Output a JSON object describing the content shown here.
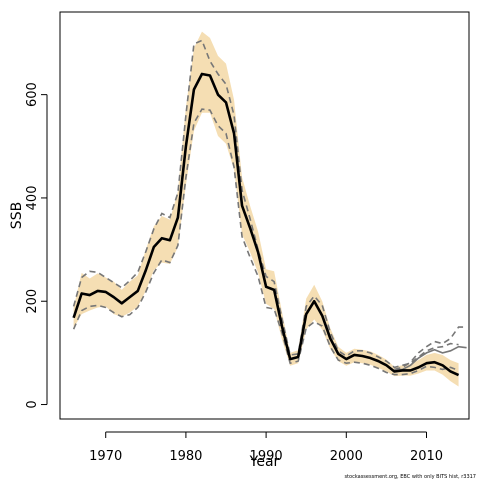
{
  "chart_data": {
    "type": "line",
    "xlabel": "Year",
    "ylabel": "SSB",
    "xlim": [
      1964.3,
      2015.3
    ],
    "ylim": [
      -28,
      760
    ],
    "x_ticks": [
      1970,
      1980,
      1990,
      2000,
      2010
    ],
    "y_ticks": [
      0,
      200,
      400,
      600
    ],
    "years": [
      1966,
      1967,
      1968,
      1969,
      1970,
      1971,
      1972,
      1973,
      1974,
      1975,
      1976,
      1977,
      1978,
      1979,
      1980,
      1981,
      1982,
      1983,
      1984,
      1985,
      1986,
      1987,
      1988,
      1989,
      1990,
      1991,
      1992,
      1993,
      1994,
      1995,
      1996,
      1997,
      1998,
      1999,
      2000,
      2001,
      2002,
      2003,
      2004,
      2005,
      2006,
      2007,
      2008,
      2009,
      2010,
      2011,
      2012,
      2013,
      2014
    ],
    "series": [
      {
        "role": "estimate",
        "color": "#000000",
        "values": [
          168,
          215,
          212,
          220,
          218,
          208,
          196,
          208,
          220,
          260,
          305,
          322,
          318,
          362,
          500,
          610,
          640,
          637,
          600,
          585,
          525,
          385,
          342,
          295,
          228,
          222,
          150,
          88,
          92,
          175,
          200,
          172,
          128,
          98,
          88,
          96,
          94,
          90,
          84,
          76,
          64,
          66,
          66,
          72,
          80,
          82,
          76,
          64,
          57
        ]
      },
      {
        "role": "confidence-band",
        "color": "#f5deb3",
        "lower": [
          148,
          175,
          182,
          188,
          190,
          175,
          170,
          178,
          190,
          220,
          260,
          275,
          272,
          305,
          425,
          530,
          565,
          565,
          520,
          505,
          455,
          330,
          295,
          255,
          195,
          185,
          125,
          75,
          80,
          145,
          165,
          145,
          108,
          84,
          75,
          82,
          80,
          77,
          71,
          64,
          55,
          56,
          56,
          60,
          66,
          66,
          58,
          45,
          35
        ],
        "upper": [
          188,
          255,
          244,
          254,
          246,
          238,
          222,
          238,
          250,
          300,
          345,
          365,
          358,
          412,
          575,
          690,
          722,
          710,
          675,
          660,
          590,
          440,
          385,
          335,
          262,
          258,
          178,
          100,
          105,
          205,
          232,
          200,
          148,
          112,
          100,
          108,
          106,
          103,
          96,
          87,
          73,
          76,
          78,
          86,
          96,
          100,
          96,
          86,
          80
        ]
      },
      {
        "role": "reference-interval",
        "color": "#777777",
        "dashed": true,
        "lower": [
          146,
          182,
          190,
          192,
          188,
          178,
          170,
          174,
          188,
          218,
          255,
          280,
          275,
          308,
          440,
          545,
          572,
          570,
          540,
          525,
          460,
          325,
          285,
          248,
          188,
          185,
          138,
          80,
          84,
          148,
          160,
          152,
          112,
          86,
          80,
          82,
          80,
          76,
          70,
          62,
          58,
          58,
          60,
          66,
          74,
          72,
          68,
          72,
          66
        ],
        "upper": [
          190,
          246,
          258,
          256,
          246,
          236,
          226,
          240,
          256,
          296,
          340,
          370,
          362,
          410,
          560,
          698,
          705,
          665,
          640,
          620,
          560,
          415,
          360,
          300,
          248,
          238,
          165,
          96,
          98,
          190,
          210,
          192,
          140,
          104,
          94,
          104,
          104,
          100,
          92,
          84,
          72,
          76,
          80,
          92,
          104,
          110,
          112,
          118,
          116
        ]
      },
      {
        "role": "alternative-run",
        "color": "#777777",
        "dashed": true,
        "segment_start_year": 2006,
        "values": [
          68,
          72,
          82,
          100,
          112,
          122,
          118,
          128,
          150,
          150
        ]
      },
      {
        "role": "alternative-run",
        "color": "#777777",
        "dashed": false,
        "segment_start_year": 2006,
        "values": [
          66,
          68,
          76,
          90,
          100,
          106,
          100,
          104,
          112,
          110
        ]
      }
    ]
  },
  "credit_text": "stockassessment.org, EBC with only BITS hist, r3317"
}
